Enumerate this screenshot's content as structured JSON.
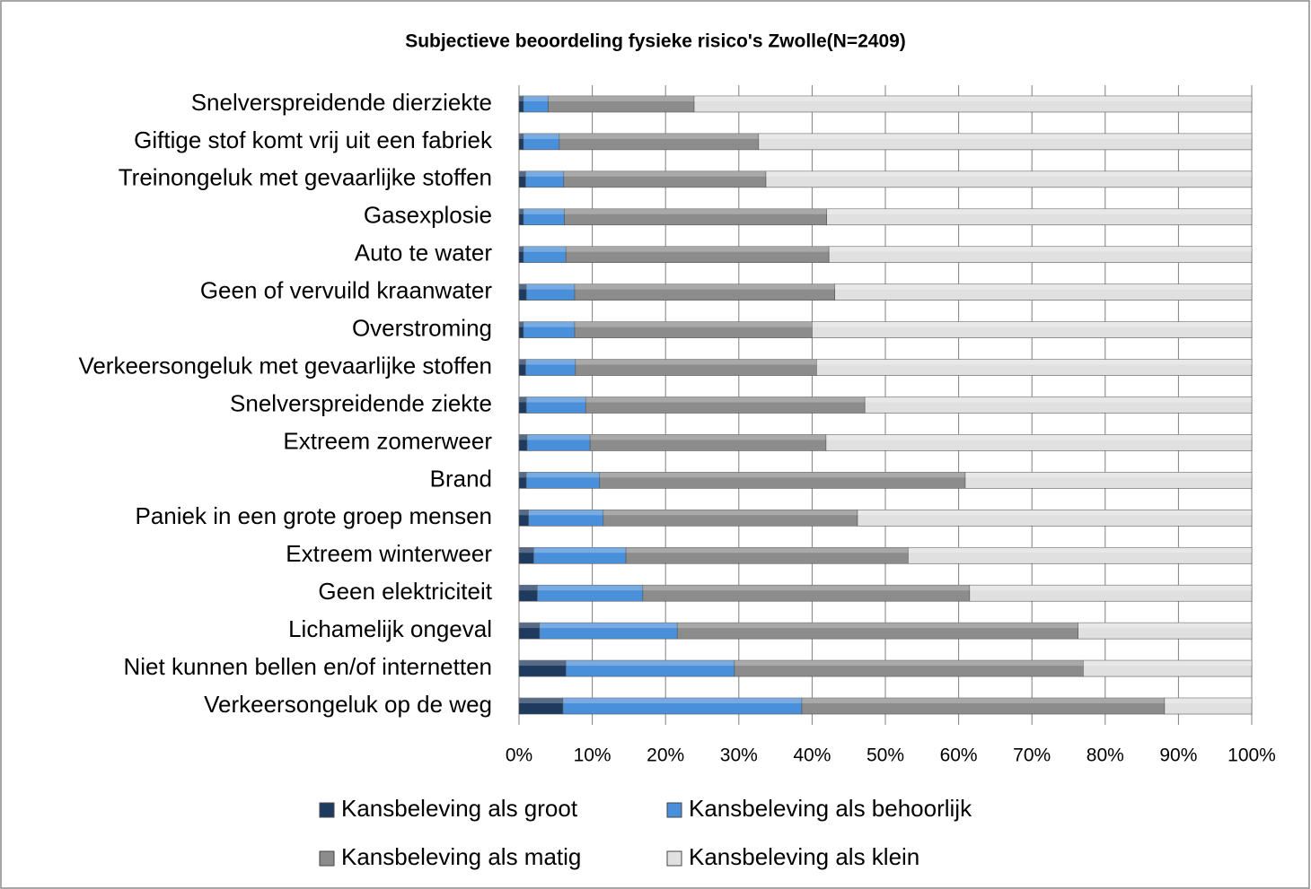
{
  "chart_data": {
    "type": "stacked_bar_horizontal",
    "title": "Subjectieve beoordeling fysieke risico's Zwolle(N=2409)",
    "categories": [
      "Snelverspreidende dierziekte",
      "Giftige stof komt vrij uit een fabriek",
      "Treinongeluk met gevaarlijke stoffen",
      "Gasexplosie",
      "Auto te water",
      "Geen of vervuild kraanwater",
      "Overstroming",
      "Verkeersongeluk met gevaarlijke stoffen",
      "Snelverspreidende ziekte",
      "Extreem zomerweer",
      "Brand",
      "Paniek in een grote groep mensen",
      "Extreem winterweer",
      "Geen elektriciteit",
      "Lichamelijk ongeval",
      "Niet kunnen bellen en/of internetten",
      "Verkeersongeluk op de weg"
    ],
    "series": [
      {
        "name": "Kansbeleving als groot",
        "color": "#1f3a5f",
        "values": [
          0.6,
          0.6,
          0.9,
          0.6,
          0.6,
          1.0,
          0.6,
          0.9,
          1.0,
          1.1,
          1.0,
          1.3,
          2.0,
          2.5,
          2.8,
          6.4,
          6.0
        ]
      },
      {
        "name": "Kansbeleving als behoorlijk",
        "color": "#4a8fd9",
        "values": [
          3.4,
          4.9,
          5.2,
          5.6,
          5.8,
          6.6,
          7.0,
          6.8,
          8.1,
          8.6,
          10.0,
          10.2,
          12.6,
          14.4,
          18.8,
          23.0,
          32.6
        ]
      },
      {
        "name": "Kansbeleving als matig",
        "color": "#8c8c8c",
        "values": [
          19.9,
          27.2,
          27.6,
          35.8,
          35.9,
          35.5,
          32.4,
          32.9,
          38.1,
          32.2,
          49.9,
          34.7,
          38.5,
          44.6,
          54.7,
          47.6,
          49.5
        ]
      },
      {
        "name": "Kansbeleving als klein",
        "color": "#e0e0e0",
        "values": [
          76.1,
          67.3,
          66.3,
          58.0,
          57.7,
          56.9,
          60.0,
          59.4,
          52.8,
          58.1,
          39.1,
          53.8,
          46.9,
          38.5,
          23.7,
          23.0,
          11.9
        ]
      }
    ],
    "xlim": [
      0,
      100
    ],
    "xticks": [
      {
        "value": 0,
        "label": "0%"
      },
      {
        "value": 10,
        "label": "10%"
      },
      {
        "value": 20,
        "label": "20%"
      },
      {
        "value": 30,
        "label": "30%"
      },
      {
        "value": 40,
        "label": "40%"
      },
      {
        "value": 50,
        "label": "50%"
      },
      {
        "value": 60,
        "label": "60%"
      },
      {
        "value": 70,
        "label": "70%"
      },
      {
        "value": 80,
        "label": "80%"
      },
      {
        "value": 90,
        "label": "90%"
      },
      {
        "value": 100,
        "label": "100%"
      }
    ],
    "grid": true
  }
}
